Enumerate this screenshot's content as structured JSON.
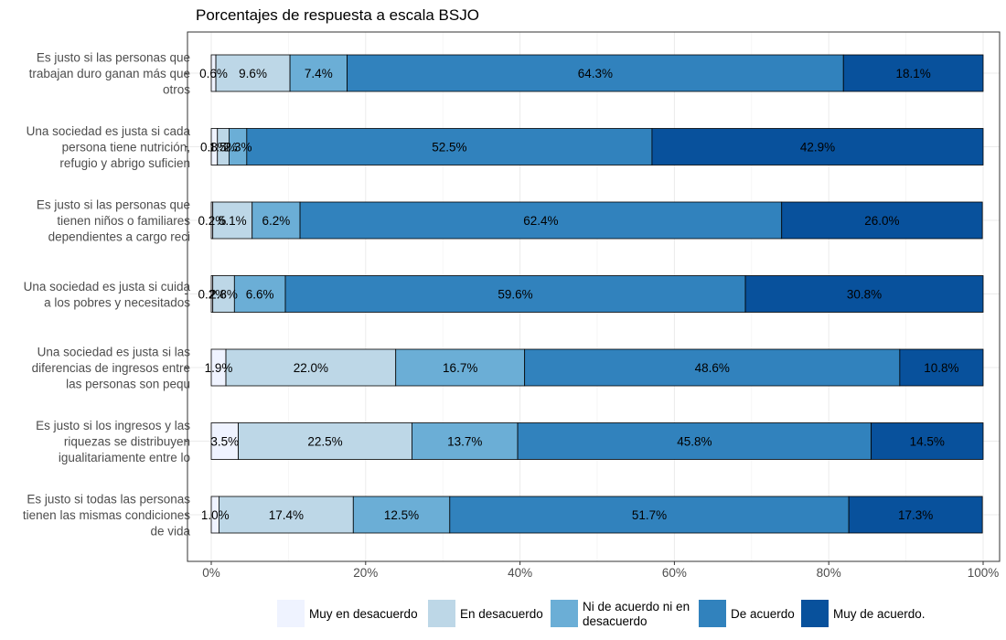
{
  "chart_data": {
    "type": "bar",
    "orientation": "horizontal",
    "stacked": true,
    "title": "Porcentajes de respuesta a escala BSJO",
    "xlabel": "",
    "ylabel": "",
    "xlim": [
      0,
      100
    ],
    "x_ticks": [
      "0%",
      "20%",
      "40%",
      "60%",
      "80%",
      "100%"
    ],
    "grid": true,
    "legend_position": "bottom",
    "categories": [
      [
        "Es justo si las personas que",
        "trabajan duro ganan más que",
        "otros"
      ],
      [
        "Una sociedad es justa si cada",
        "persona tiene nutrición,",
        "refugio y abrigo suficien"
      ],
      [
        "Es justo si las personas que",
        "tienen niños o familiares",
        "dependientes a cargo reci"
      ],
      [
        "Una sociedad es justa si cuida",
        "a los pobres y necesitados"
      ],
      [
        "Una sociedad es justa si las",
        "diferencias de ingresos entre",
        "las personas son pequ"
      ],
      [
        "Es justo si los ingresos y las",
        "riquezas se distribuyen",
        "igualitariamente entre lo"
      ],
      [
        "Es justo si todas las personas",
        "tienen las mismas condiciones",
        "de vida"
      ]
    ],
    "series": [
      {
        "name": "Muy en desacuerdo",
        "legend_lines": [
          "Muy en desacuerdo"
        ],
        "color": "#eff3ff",
        "values": [
          0.6,
          0.8,
          0.2,
          0.2,
          1.9,
          3.5,
          1.0
        ],
        "labels": [
          "0.6%",
          "0.8%",
          "0.2%",
          "0.2%",
          "1.9%",
          "3.5%",
          "1.0%"
        ]
      },
      {
        "name": "En desacuerdo",
        "legend_lines": [
          "En desacuerdo"
        ],
        "color": "#bdd7e7",
        "values": [
          9.6,
          1.5,
          5.1,
          2.8,
          22.0,
          22.5,
          17.4
        ],
        "labels": [
          "9.6%",
          "1.5%",
          "5.1%",
          "2.8%",
          "22.0%",
          "22.5%",
          "17.4%"
        ]
      },
      {
        "name": "Ni de acuerdo ni en desacuerdo",
        "legend_lines": [
          "Ni de acuerdo ni en",
          "desacuerdo"
        ],
        "color": "#6baed6",
        "values": [
          7.4,
          2.3,
          6.2,
          6.6,
          16.7,
          13.7,
          12.5
        ],
        "labels": [
          "7.4%",
          "2.3%",
          "6.2%",
          "6.6%",
          "16.7%",
          "13.7%",
          "12.5%"
        ]
      },
      {
        "name": "De acuerdo",
        "legend_lines": [
          "De acuerdo"
        ],
        "color": "#3182bd",
        "values": [
          64.3,
          52.5,
          62.4,
          59.6,
          48.6,
          45.8,
          51.7
        ],
        "labels": [
          "64.3%",
          "52.5%",
          "62.4%",
          "59.6%",
          "48.6%",
          "45.8%",
          "51.7%"
        ]
      },
      {
        "name": "Muy de acuerdo.",
        "legend_lines": [
          "Muy de acuerdo."
        ],
        "color": "#08519c",
        "values": [
          18.1,
          42.9,
          26.0,
          30.8,
          10.8,
          14.5,
          17.3
        ],
        "labels": [
          "18.1%",
          "42.9%",
          "26.0%",
          "30.8%",
          "10.8%",
          "14.5%",
          "17.3%"
        ]
      }
    ]
  }
}
